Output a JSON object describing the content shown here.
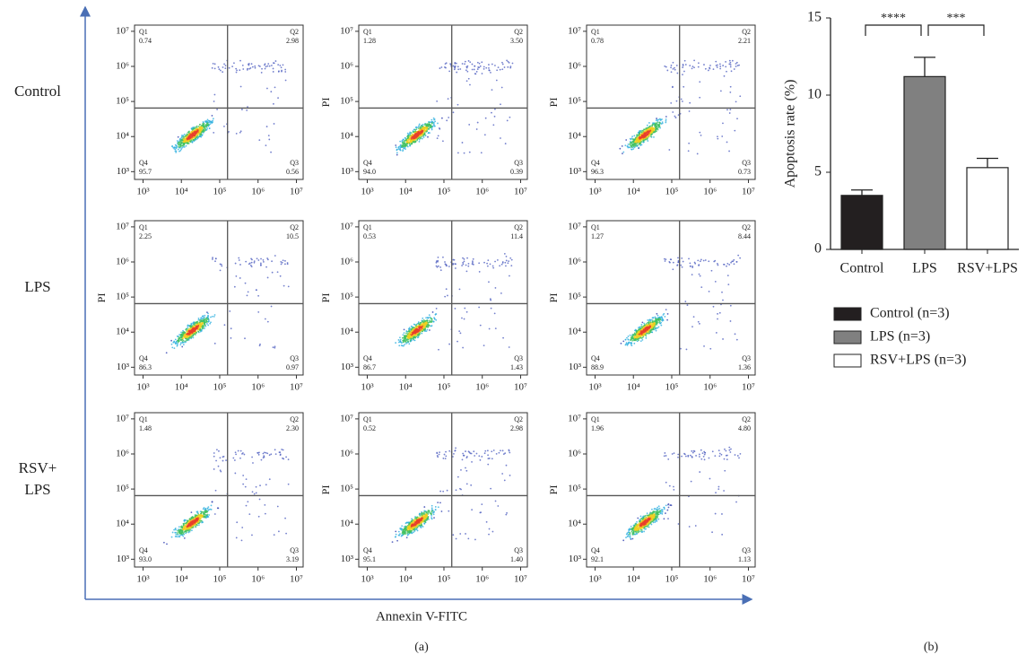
{
  "chart_data": [
    {
      "type": "flow-grid",
      "xlabel": "Annexin V-FITC",
      "ylabel": "PI",
      "caption": "(a)",
      "rows": [
        "Control",
        "LPS",
        "RSV+\nLPS"
      ],
      "xscale": "log",
      "yscale": "log",
      "xlim": [
        600,
        15000000
      ],
      "ylim": [
        600,
        15000000
      ],
      "xticks": [
        {
          "value": 1000,
          "label": "10³"
        },
        {
          "value": 10000,
          "label": "10⁴"
        },
        {
          "value": 100000,
          "label": "10⁵"
        },
        {
          "value": 1000000,
          "label": "10⁶"
        },
        {
          "value": 10000000,
          "label": "10⁷"
        }
      ],
      "yticks": [
        {
          "value": 1000,
          "label": "10³"
        },
        {
          "value": 10000,
          "label": "10⁴"
        },
        {
          "value": 100000,
          "label": "10⁵"
        },
        {
          "value": 1000000,
          "label": "10⁶"
        },
        {
          "value": 10000000,
          "label": "10⁷"
        }
      ],
      "gate": {
        "x": 160000,
        "y": 65000
      },
      "panels": [
        {
          "show_ylabel": false,
          "quadrants": [
            {
              "name": "Q1",
              "value": 0.74
            },
            {
              "name": "Q2",
              "value": 2.98
            },
            {
              "name": "Q3",
              "value": 0.56
            },
            {
              "name": "Q4",
              "value": 95.7
            }
          ]
        },
        {
          "show_ylabel": true,
          "quadrants": [
            {
              "name": "Q1",
              "value": 1.28
            },
            {
              "name": "Q2",
              "value": 3.5,
              "label": "3.50"
            },
            {
              "name": "Q3",
              "value": 0.39
            },
            {
              "name": "Q4",
              "value": 94,
              "label": "94.0"
            }
          ]
        },
        {
          "show_ylabel": true,
          "quadrants": [
            {
              "name": "Q1",
              "value": 0.78
            },
            {
              "name": "Q2",
              "value": 2.21
            },
            {
              "name": "Q3",
              "value": 0.73
            },
            {
              "name": "Q4",
              "value": 96.3
            }
          ]
        },
        {
          "show_ylabel": true,
          "quadrants": [
            {
              "name": "Q1",
              "value": 2.25
            },
            {
              "name": "Q2",
              "value": 10.5
            },
            {
              "name": "Q3",
              "value": 0.97
            },
            {
              "name": "Q4",
              "value": 86.3
            }
          ]
        },
        {
          "show_ylabel": true,
          "quadrants": [
            {
              "name": "Q1",
              "value": 0.53
            },
            {
              "name": "Q2",
              "value": 11.4
            },
            {
              "name": "Q3",
              "value": 1.43
            },
            {
              "name": "Q4",
              "value": 86.7
            }
          ]
        },
        {
          "show_ylabel": true,
          "quadrants": [
            {
              "name": "Q1",
              "value": 1.27
            },
            {
              "name": "Q2",
              "value": 8.44
            },
            {
              "name": "Q3",
              "value": 1.36
            },
            {
              "name": "Q4",
              "value": 88.9
            }
          ]
        },
        {
          "show_ylabel": false,
          "quadrants": [
            {
              "name": "Q1",
              "value": 1.48
            },
            {
              "name": "Q2",
              "value": 2.3,
              "label": "2.30"
            },
            {
              "name": "Q3",
              "value": 3.19
            },
            {
              "name": "Q4",
              "value": 93,
              "label": "93.0"
            }
          ]
        },
        {
          "show_ylabel": true,
          "quadrants": [
            {
              "name": "Q1",
              "value": 0.52
            },
            {
              "name": "Q2",
              "value": 2.98
            },
            {
              "name": "Q3",
              "value": 1.4,
              "label": "1.40"
            },
            {
              "name": "Q4",
              "value": 95.1
            }
          ]
        },
        {
          "show_ylabel": true,
          "quadrants": [
            {
              "name": "Q1",
              "value": 1.96
            },
            {
              "name": "Q2",
              "value": 4.8,
              "label": "4.80"
            },
            {
              "name": "Q3",
              "value": 1.13
            },
            {
              "name": "Q4",
              "value": 92.1
            }
          ]
        }
      ]
    },
    {
      "type": "bar",
      "ylabel": "Apoptosis rate (%)",
      "caption": "(b)",
      "categories": [
        "Control",
        "LPS",
        "RSV+LPS"
      ],
      "values": [
        3.5,
        11.2,
        5.3
      ],
      "errors": [
        0.35,
        1.25,
        0.6
      ],
      "colors": [
        "#231f20",
        "#808080",
        "#ffffff"
      ],
      "legend": [
        "Control (n=3)",
        "LPS (n=3)",
        "RSV+LPS (n=3)"
      ],
      "ylim": [
        0,
        15
      ],
      "yticks": [
        0,
        5,
        10,
        15
      ],
      "significance": [
        {
          "from": 0,
          "to": 1,
          "label": "****"
        },
        {
          "from": 1,
          "to": 2,
          "label": "***"
        }
      ]
    }
  ]
}
